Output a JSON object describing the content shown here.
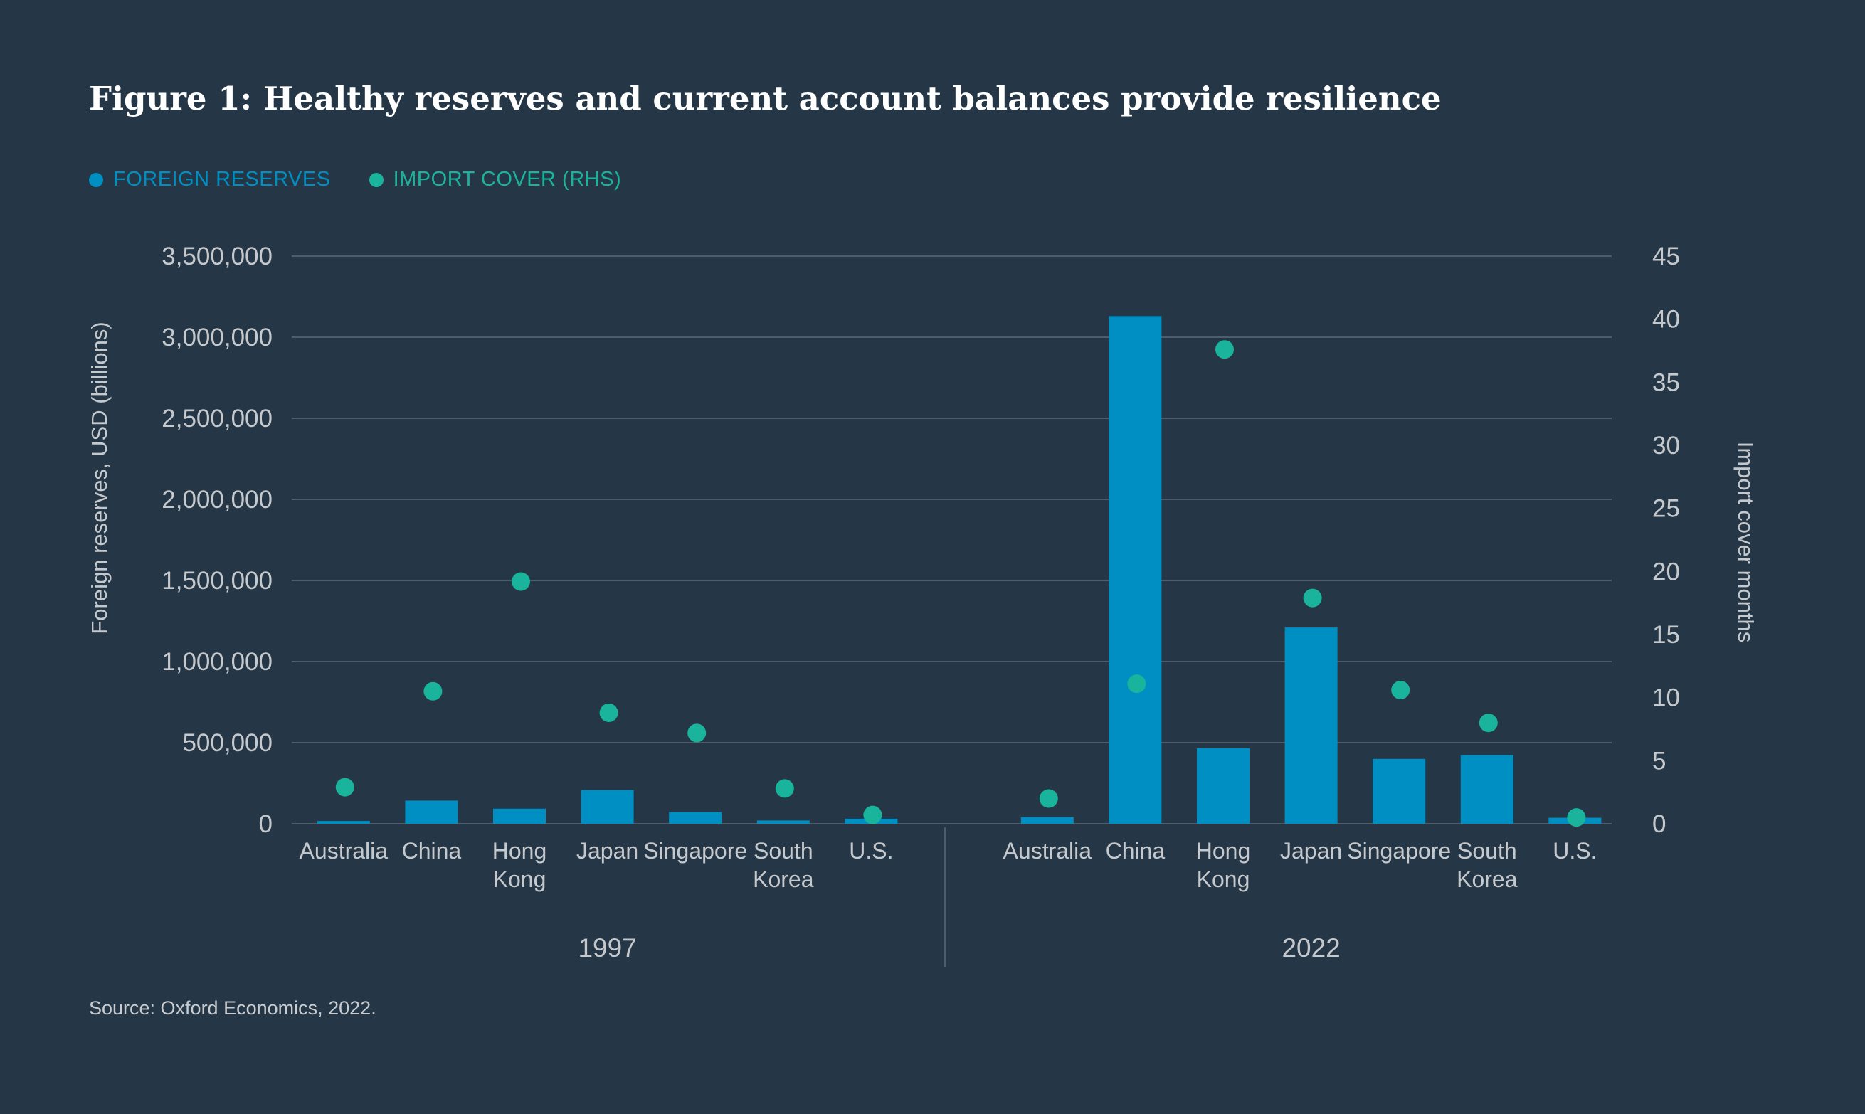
{
  "colors": {
    "background": "#253746",
    "bar": "#008fc3",
    "dot": "#1ab49c",
    "grid": "#5b6a77",
    "text": "#c5c9cd"
  },
  "chart_data": {
    "type": "bar",
    "title": "Figure 1: Healthy reserves and current account balances provide resilience",
    "legend": {
      "placement": "top-left",
      "items": [
        {
          "label": "FOREIGN RESERVES",
          "marker": "dot",
          "color": "#008fc3"
        },
        {
          "label": "IMPORT COVER (RHS)",
          "marker": "dot",
          "color": "#1ab49c"
        }
      ]
    },
    "ylabel": "Foreign reserves, USD (billions)",
    "y2label": "Import cover months",
    "ylim": [
      0,
      3500000
    ],
    "y2lim": [
      0,
      45
    ],
    "yticks": [
      "0",
      "500,000",
      "1,000,000",
      "1,500,000",
      "2,000,000",
      "2,500,000",
      "3,000,000",
      "3,500,000"
    ],
    "y2ticks": [
      "0",
      "5",
      "10",
      "15",
      "20",
      "25",
      "30",
      "35",
      "40",
      "45"
    ],
    "grid": true,
    "groups": [
      {
        "label": "1997",
        "categories": [
          "Australia",
          "China",
          "Hong Kong",
          "Japan",
          "Singapore",
          "South Korea",
          "U.S."
        ],
        "category_lines": [
          [
            "Australia"
          ],
          [
            "China"
          ],
          [
            "Hong",
            "Kong"
          ],
          [
            "Japan"
          ],
          [
            "Singapore"
          ],
          [
            "South",
            "Korea"
          ],
          [
            "U.S."
          ]
        ],
        "series": [
          {
            "name": "FOREIGN RESERVES",
            "kind": "bar",
            "axis": "left",
            "values": [
              17000,
              143000,
              93000,
              208000,
              72000,
              20000,
              31000
            ]
          },
          {
            "name": "IMPORT COVER (RHS)",
            "kind": "dot",
            "axis": "right",
            "values": [
              2.9,
              10.5,
              19.2,
              8.8,
              7.2,
              2.8,
              0.7
            ]
          }
        ]
      },
      {
        "label": "2022",
        "categories": [
          "Australia",
          "China",
          "Hong Kong",
          "Japan",
          "Singapore",
          "South Korea",
          "U.S."
        ],
        "category_lines": [
          [
            "Australia"
          ],
          [
            "China"
          ],
          [
            "Hong",
            "Kong"
          ],
          [
            "Japan"
          ],
          [
            "Singapore"
          ],
          [
            "South",
            "Korea"
          ],
          [
            "U.S."
          ]
        ],
        "series": [
          {
            "name": "FOREIGN RESERVES",
            "kind": "bar",
            "axis": "left",
            "values": [
              41000,
              3130000,
              466000,
              1210000,
              400000,
              423000,
              37000
            ]
          },
          {
            "name": "IMPORT COVER (RHS)",
            "kind": "dot",
            "axis": "right",
            "values": [
              2.0,
              11.1,
              37.6,
              17.9,
              10.6,
              8.0,
              0.5
            ]
          }
        ]
      }
    ]
  },
  "source": "Source: Oxford Economics, 2022."
}
